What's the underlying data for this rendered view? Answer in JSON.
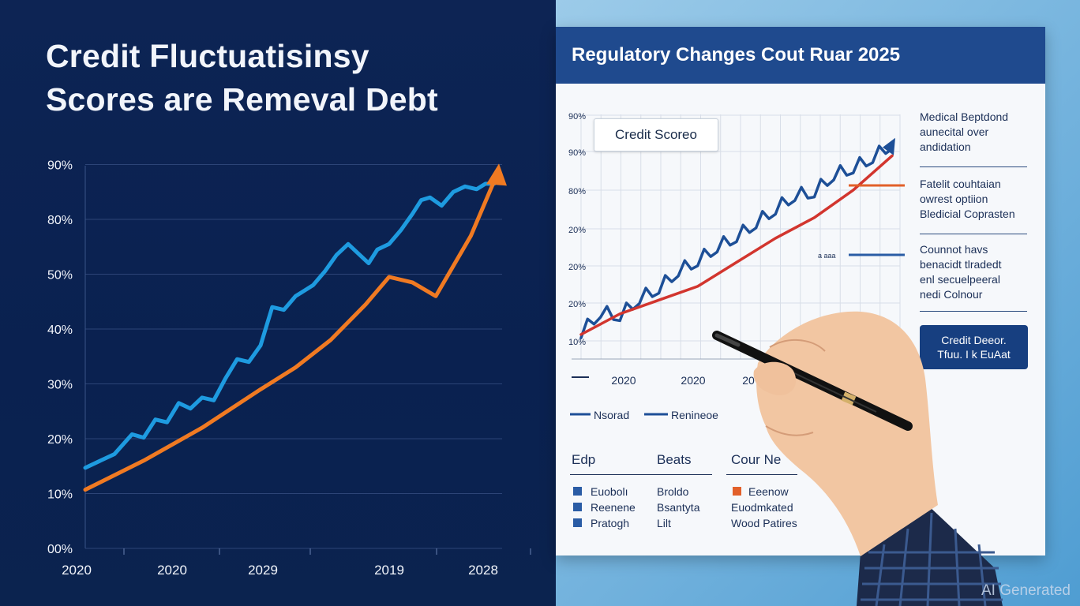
{
  "left_panel": {
    "title_line1": "Credit Fluctuatisinsy",
    "title_line2": "Scores are Remeval Debt"
  },
  "right_panel": {
    "card_title": "Regulatory Changes Cout Ruar 2025",
    "score_box_label": "Credit Scoreo",
    "notes": [
      [
        "Medical Beptdond",
        "aunecital over",
        "andidation"
      ],
      [
        "Fatelit couhtaian",
        "owrest optiion",
        "Bledicial Coprasten"
      ],
      [
        "Counnot havs",
        "benacidt tlradedt",
        "enl secuelpeeral",
        "nedi Colnour"
      ]
    ],
    "cta_line1": "Credit Deeor.",
    "cta_line2": "Tfuu. I k EuAat",
    "legend": [
      "Nsorad",
      "Renineoe"
    ],
    "small_label": "a aaa",
    "table": {
      "headers": [
        "Edp",
        "Beats",
        "Cour Ne"
      ],
      "col1": [
        "Euobolı",
        "Reenene",
        "Pratogh"
      ],
      "col2": [
        "Broldo",
        "Bsantyta",
        "Lilt"
      ],
      "col3": [
        "Eeenow",
        "Euodmkated",
        "Wood Patires"
      ]
    }
  },
  "watermark": "AI Generated",
  "colors": {
    "blue_series": "#1e9be0",
    "orange_series": "#f07a22",
    "navy_bg": "#0b2250",
    "card_header": "#1f4a8e",
    "red_series": "#d2352e",
    "dark_blue_series": "#1d4f97"
  },
  "chart_data": [
    {
      "type": "line",
      "title": "",
      "ytick_labels": [
        "00%",
        "10%",
        "20%",
        "30%",
        "40%",
        "50%",
        "80%",
        "90%"
      ],
      "xtick_labels": [
        "2020",
        "2020",
        "2029",
        "2019",
        "2028"
      ],
      "ylim": [
        0,
        7
      ],
      "grid": true,
      "series": [
        {
          "color": "#1e9be0",
          "x": [
            0,
            0.5,
            0.8,
            1.0,
            1.2,
            1.4,
            1.6,
            1.8,
            2.0,
            2.2,
            2.4,
            2.6,
            2.8,
            3.0,
            3.2,
            3.4,
            3.6,
            3.9,
            4.1,
            4.3,
            4.5,
            4.7,
            4.85,
            5.0,
            5.2,
            5.4,
            5.6,
            5.75,
            5.9,
            6.1,
            6.3,
            6.5,
            6.7,
            6.85,
            7.0
          ],
          "y": [
            1.47,
            1.72,
            2.08,
            2.02,
            2.35,
            2.3,
            2.65,
            2.55,
            2.75,
            2.7,
            3.1,
            3.45,
            3.4,
            3.7,
            4.4,
            4.35,
            4.6,
            4.8,
            5.05,
            5.35,
            5.55,
            5.35,
            5.2,
            5.45,
            5.55,
            5.8,
            6.1,
            6.35,
            6.4,
            6.25,
            6.5,
            6.6,
            6.55,
            6.65,
            6.65
          ]
        },
        {
          "color": "#f07a22",
          "x": [
            0,
            1.0,
            2.0,
            3.0,
            3.6,
            4.2,
            4.8,
            5.2,
            5.6,
            6.0,
            6.6,
            7.0
          ],
          "y": [
            1.07,
            1.6,
            2.2,
            2.9,
            3.3,
            3.8,
            4.45,
            4.95,
            4.85,
            4.6,
            5.7,
            6.7
          ]
        }
      ]
    },
    {
      "type": "line",
      "title": "",
      "ytick_labels": [
        "10%",
        "20%",
        "20%",
        "20%",
        "80%",
        "90%",
        "90%"
      ],
      "xtick_labels": [
        "2020",
        "2020",
        "20"
      ],
      "grid": true,
      "series": [
        {
          "name": "Nsorad",
          "color": "#1d4f97",
          "x": [
            0,
            0.5,
            1.0,
            1.5,
            2.0,
            2.5,
            3.0,
            3.5,
            4.0,
            4.5,
            5.0,
            5.5,
            6.0,
            6.5,
            7.0,
            7.5,
            8.0
          ],
          "y": [
            0.5,
            1.1,
            1.0,
            1.5,
            1.8,
            2.3,
            2.6,
            3.0,
            3.3,
            3.7,
            4.1,
            4.5,
            4.6,
            5.1,
            5.3,
            5.6,
            6.0
          ]
        },
        {
          "name": "Renineoe",
          "color": "#d2352e",
          "x": [
            0,
            1.0,
            2.0,
            3.0,
            4.0,
            5.0,
            6.0,
            7.0,
            8.0
          ],
          "y": [
            0.6,
            1.2,
            1.6,
            2.0,
            2.7,
            3.4,
            4.0,
            4.8,
            5.8
          ]
        }
      ]
    }
  ]
}
